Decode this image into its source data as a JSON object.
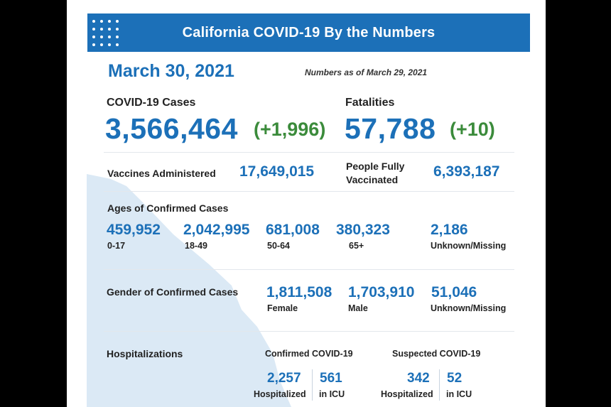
{
  "header": {
    "title": "California COVID-19 By the Numbers"
  },
  "date": "March 30, 2021",
  "as_of": "Numbers as of March 29, 2021",
  "cases": {
    "label": "COVID-19 Cases",
    "value": "3,566,464",
    "change": "(+1,996)"
  },
  "fatalities": {
    "label": "Fatalities",
    "value": "57,788",
    "change": "(+10)"
  },
  "vaccines": {
    "administered_label": "Vaccines Administered",
    "administered_value": "17,649,015",
    "fully_label_line1": "People Fully",
    "fully_label_line2": "Vaccinated",
    "fully_value": "6,393,187"
  },
  "ages": {
    "title": "Ages of Confirmed Cases",
    "groups": [
      {
        "value": "459,952",
        "label": "0-17"
      },
      {
        "value": "2,042,995",
        "label": "18-49"
      },
      {
        "value": "681,008",
        "label": "50-64"
      },
      {
        "value": "380,323",
        "label": "65+"
      },
      {
        "value": "2,186",
        "label": "Unknown/Missing"
      }
    ]
  },
  "gender": {
    "title": "Gender of Confirmed Cases",
    "groups": [
      {
        "value": "1,811,508",
        "label": "Female"
      },
      {
        "value": "1,703,910",
        "label": "Male"
      },
      {
        "value": "51,046",
        "label": "Unknown/Missing"
      }
    ]
  },
  "hospitalizations": {
    "title": "Hospitalizations",
    "confirmed": {
      "title": "Confirmed COVID-19",
      "hospitalized_value": "2,257",
      "hospitalized_label": "Hospitalized",
      "icu_value": "561",
      "icu_label": "in ICU"
    },
    "suspected": {
      "title": "Suspected COVID-19",
      "hospitalized_value": "342",
      "hospitalized_label": "Hospitalized",
      "icu_value": "52",
      "icu_label": "in ICU"
    }
  },
  "colors": {
    "primary_blue": "#1c70b8",
    "change_green": "#3b8b3b",
    "map_shape": "#dbe9f5"
  }
}
